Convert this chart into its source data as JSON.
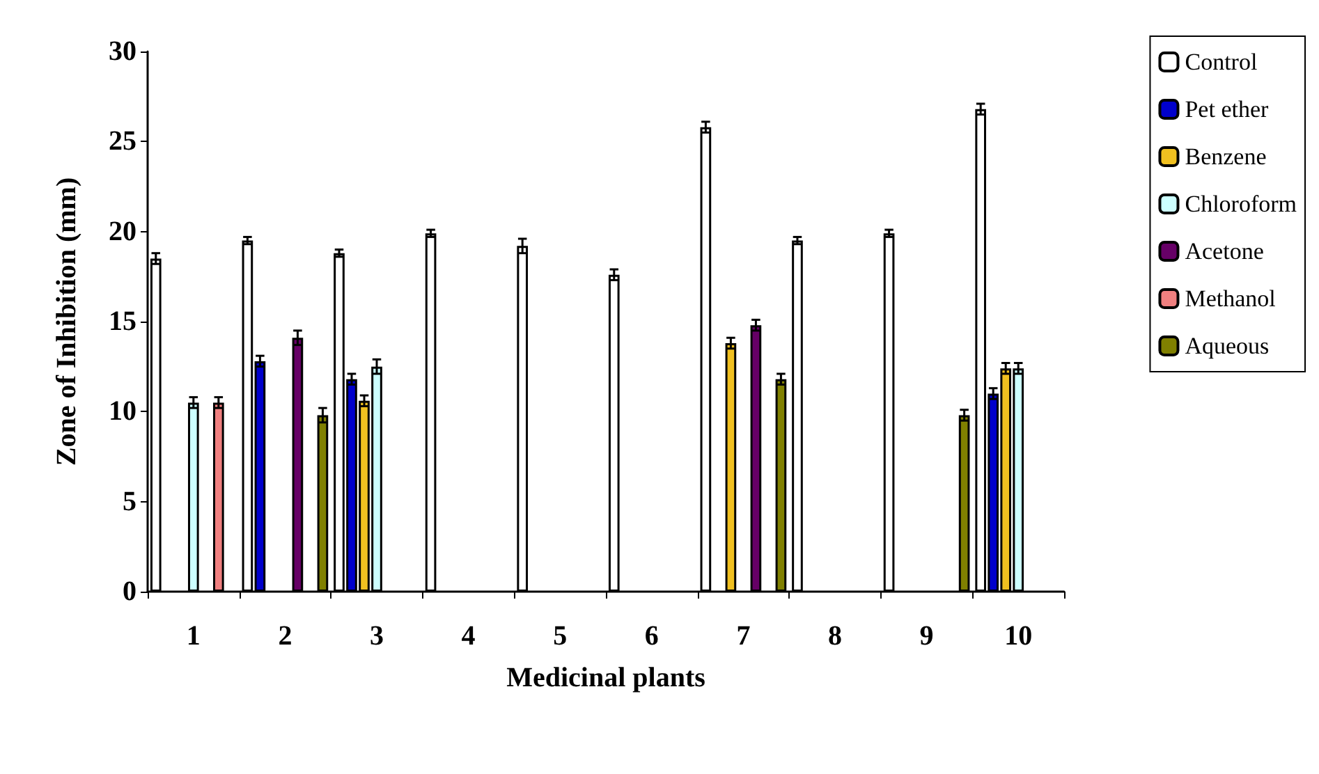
{
  "chart_data": {
    "type": "bar",
    "xlabel": "Medicinal plants",
    "ylabel": "Zone of Inhibition (mm)",
    "categories": [
      "1",
      "2",
      "3",
      "4",
      "5",
      "6",
      "7",
      "8",
      "9",
      "10"
    ],
    "series": [
      {
        "name": "Control",
        "color": "#ffffff",
        "values": [
          18.5,
          19.5,
          18.8,
          19.9,
          19.2,
          17.6,
          25.8,
          19.5,
          19.9,
          26.8
        ],
        "errors": [
          0.3,
          0.2,
          0.2,
          0.2,
          0.4,
          0.3,
          0.3,
          0.2,
          0.2,
          0.3
        ]
      },
      {
        "name": "Pet ether",
        "color": "#0000cc",
        "values": [
          null,
          12.8,
          11.8,
          null,
          null,
          null,
          null,
          null,
          null,
          11.0
        ],
        "errors": [
          null,
          0.3,
          0.3,
          null,
          null,
          null,
          null,
          null,
          null,
          0.3
        ]
      },
      {
        "name": "Benzene",
        "color": "#f0c020",
        "values": [
          null,
          null,
          10.6,
          null,
          null,
          null,
          13.8,
          null,
          null,
          12.4
        ],
        "errors": [
          null,
          null,
          0.3,
          null,
          null,
          null,
          0.3,
          null,
          null,
          0.3
        ]
      },
      {
        "name": "Chloroform",
        "color": "#ccffff",
        "values": [
          10.5,
          null,
          12.5,
          null,
          null,
          null,
          null,
          null,
          null,
          12.4
        ],
        "errors": [
          0.3,
          null,
          0.4,
          null,
          null,
          null,
          null,
          null,
          null,
          0.3
        ]
      },
      {
        "name": "Acetone",
        "color": "#660066",
        "values": [
          null,
          14.1,
          null,
          null,
          null,
          null,
          14.8,
          null,
          null,
          null
        ],
        "errors": [
          null,
          0.4,
          null,
          null,
          null,
          null,
          0.3,
          null,
          null,
          null
        ]
      },
      {
        "name": "Methanol",
        "color": "#f08080",
        "values": [
          10.5,
          null,
          null,
          null,
          null,
          null,
          null,
          null,
          null,
          null
        ],
        "errors": [
          0.3,
          null,
          null,
          null,
          null,
          null,
          null,
          null,
          null,
          null
        ]
      },
      {
        "name": "Aqueous",
        "color": "#808000",
        "values": [
          null,
          9.8,
          null,
          null,
          null,
          null,
          11.8,
          null,
          9.8,
          null
        ],
        "errors": [
          null,
          0.4,
          null,
          null,
          null,
          null,
          0.3,
          null,
          0.3,
          null
        ]
      }
    ],
    "ylim": [
      0,
      30
    ],
    "yticks": [
      0,
      5,
      10,
      15,
      20,
      25,
      30
    ],
    "grid": false,
    "legend": "right"
  }
}
